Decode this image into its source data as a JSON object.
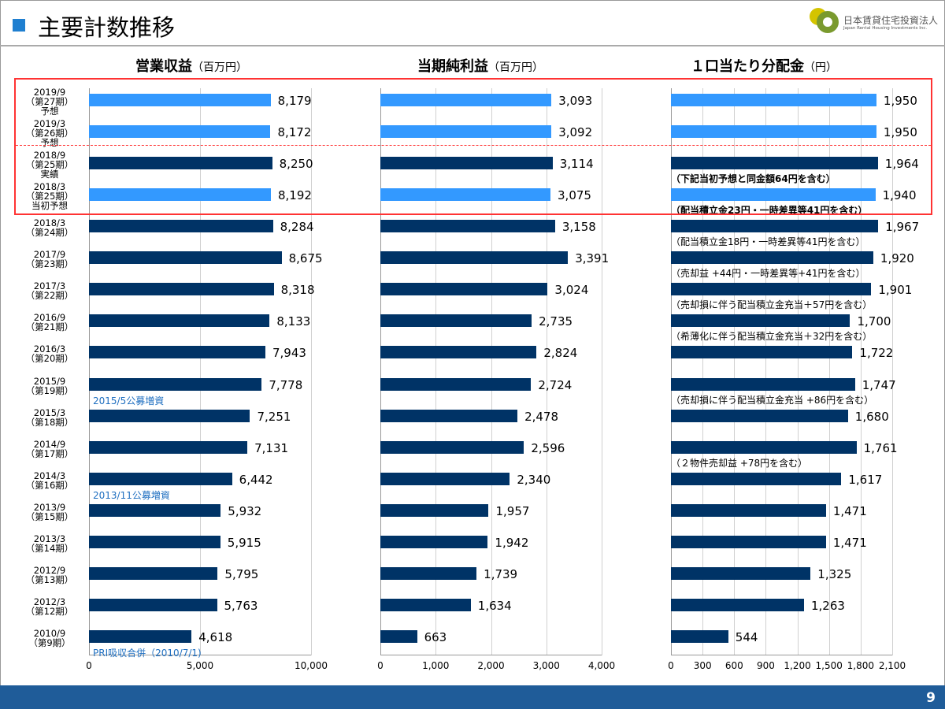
{
  "header": {
    "title": "主要計数推移",
    "logo_jp": "日本賃貸住宅投資法人",
    "logo_en": "Japan Rental Housing Investments Inc."
  },
  "page_number": "9",
  "colors": {
    "forecast": "#3399ff",
    "actual": "#003366",
    "annotation": "#1f6fc0",
    "highlight_box": "#ff3333"
  },
  "chart_data": [
    {
      "type": "bar",
      "title": "営業収益",
      "unit": "（百万円）",
      "xlim": [
        0,
        10000
      ],
      "ticks": [
        "0",
        "5,000",
        "10,000"
      ],
      "tick_values": [
        0,
        5000,
        10000
      ]
    },
    {
      "type": "bar",
      "title": "当期純利益",
      "unit": "（百万円）",
      "xlim": [
        0,
        4000
      ],
      "ticks": [
        "0",
        "1,000",
        "2,000",
        "3,000",
        "4,000"
      ],
      "tick_values": [
        0,
        1000,
        2000,
        3000,
        4000
      ]
    },
    {
      "type": "bar",
      "title": "１口当たり分配金",
      "unit": "（円）",
      "xlim": [
        0,
        2100
      ],
      "ticks": [
        "0",
        "300",
        "600",
        "900",
        "1,200",
        "1,500",
        "1,800",
        "2,100"
      ],
      "tick_values": [
        0,
        300,
        600,
        900,
        1200,
        1500,
        1800,
        2100
      ]
    }
  ],
  "rows": [
    {
      "label": [
        "2019/9",
        "（第27期）",
        "予想"
      ],
      "forecast": true,
      "values": [
        8179,
        3093,
        1950
      ],
      "labels": [
        "8,179",
        "3,093",
        "1,950"
      ]
    },
    {
      "label": [
        "2019/3",
        "（第26期）",
        "予想"
      ],
      "forecast": true,
      "values": [
        8172,
        3092,
        1950
      ],
      "labels": [
        "8,172",
        "3,092",
        "1,950"
      ]
    },
    {
      "label": [
        "2018/9",
        "（第25期）",
        "実績"
      ],
      "forecast": false,
      "values": [
        8250,
        3114,
        1964
      ],
      "labels": [
        "8,250",
        "3,114",
        "1,964"
      ],
      "note": "（下記当初予想と同金額64円を含む）",
      "note_bold": true
    },
    {
      "label": [
        "2018/3",
        "（第25期）",
        "当初予想"
      ],
      "forecast": true,
      "values": [
        8192,
        3075,
        1940
      ],
      "labels": [
        "8,192",
        "3,075",
        "1,940"
      ],
      "note": "（配当積立金23円・一時差異等41円を含む）",
      "note_bold": true
    },
    {
      "label": [
        "2018/3",
        "（第24期）"
      ],
      "forecast": false,
      "values": [
        8284,
        3158,
        1967
      ],
      "labels": [
        "8,284",
        "3,158",
        "1,967"
      ],
      "note": "（配当積立金18円・一時差異等41円を含む）"
    },
    {
      "label": [
        "2017/9",
        "（第23期）"
      ],
      "forecast": false,
      "values": [
        8675,
        3391,
        1920
      ],
      "labels": [
        "8,675",
        "3,391",
        "1,920"
      ],
      "note": "（売却益 +44円・一時差異等+41円を含む）"
    },
    {
      "label": [
        "2017/3",
        "（第22期）"
      ],
      "forecast": false,
      "values": [
        8318,
        3024,
        1901
      ],
      "labels": [
        "8,318",
        "3,024",
        "1,901"
      ],
      "note": "（売却損に伴う配当積立金充当＋57円を含む）"
    },
    {
      "label": [
        "2016/9",
        "（第21期）"
      ],
      "forecast": false,
      "values": [
        8133,
        2735,
        1700
      ],
      "labels": [
        "8,133",
        "2,735",
        "1,700"
      ],
      "note": "（希薄化に伴う配当積立金充当＋32円を含む）"
    },
    {
      "label": [
        "2016/3",
        "（第20期）"
      ],
      "forecast": false,
      "values": [
        7943,
        2824,
        1722
      ],
      "labels": [
        "7,943",
        "2,824",
        "1,722"
      ]
    },
    {
      "label": [
        "2015/9",
        "（第19期）"
      ],
      "forecast": false,
      "values": [
        7778,
        2724,
        1747
      ],
      "labels": [
        "7,778",
        "2,724",
        "1,747"
      ],
      "note": "（売却損に伴う配当積立金充当 +86円を含む）",
      "annotation": "2015/5公募増資"
    },
    {
      "label": [
        "2015/3",
        "（第18期）"
      ],
      "forecast": false,
      "values": [
        7251,
        2478,
        1680
      ],
      "labels": [
        "7,251",
        "2,478",
        "1,680"
      ]
    },
    {
      "label": [
        "2014/9",
        "（第17期）"
      ],
      "forecast": false,
      "values": [
        7131,
        2596,
        1761
      ],
      "labels": [
        "7,131",
        "2,596",
        "1,761"
      ],
      "note": "（２物件売却益 +78円を含む）"
    },
    {
      "label": [
        "2014/3",
        "（第16期）"
      ],
      "forecast": false,
      "values": [
        6442,
        2340,
        1617
      ],
      "labels": [
        "6,442",
        "2,340",
        "1,617"
      ],
      "annotation": "2013/11公募増資"
    },
    {
      "label": [
        "2013/9",
        "（第15期）"
      ],
      "forecast": false,
      "values": [
        5932,
        1957,
        1471
      ],
      "labels": [
        "5,932",
        "1,957",
        "1,471"
      ]
    },
    {
      "label": [
        "2013/3",
        "（第14期）"
      ],
      "forecast": false,
      "values": [
        5915,
        1942,
        1471
      ],
      "labels": [
        "5,915",
        "1,942",
        "1,471"
      ]
    },
    {
      "label": [
        "2012/9",
        "（第13期）"
      ],
      "forecast": false,
      "values": [
        5795,
        1739,
        1325
      ],
      "labels": [
        "5,795",
        "1,739",
        "1,325"
      ]
    },
    {
      "label": [
        "2012/3",
        "（第12期）"
      ],
      "forecast": false,
      "values": [
        5763,
        1634,
        1263
      ],
      "labels": [
        "5,763",
        "1,634",
        "1,263"
      ]
    },
    {
      "label": [
        "2010/9",
        "（第9期）"
      ],
      "forecast": false,
      "values": [
        4618,
        663,
        544
      ],
      "labels": [
        "4,618",
        "663",
        "544"
      ],
      "annotation": "PRI吸収合併（2010/7/1)"
    }
  ]
}
